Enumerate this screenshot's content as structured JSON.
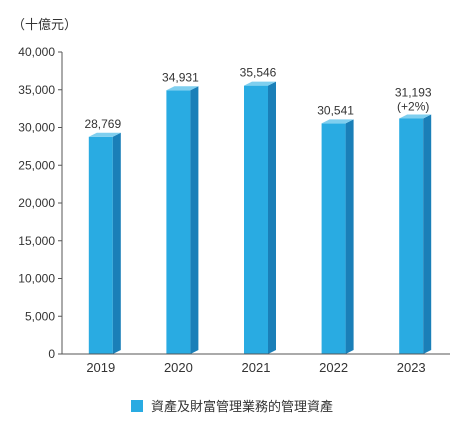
{
  "chart_data": {
    "type": "bar",
    "unit_label": "（十億元）",
    "categories": [
      "2019",
      "2020",
      "2021",
      "2022",
      "2023"
    ],
    "series": [
      {
        "name": "資產及財富管理業務的管理資產",
        "values": [
          28769,
          34931,
          35546,
          30541,
          31193
        ],
        "value_labels": [
          "28,769",
          "34,931",
          "35,546",
          "30,541",
          "31,193"
        ],
        "notes": [
          "",
          "",
          "",
          "",
          "(+2%)"
        ]
      }
    ],
    "y_ticks": [
      "0",
      "5,000",
      "10,000",
      "15,000",
      "20,000",
      "25,000",
      "30,000",
      "35,000",
      "40,000"
    ],
    "ylim": [
      0,
      40000
    ],
    "grid": false,
    "legend_position": "bottom",
    "colors": {
      "bar_front": "#29ABE2",
      "bar_side": "#1A7FB8",
      "bar_top": "#7FCFEF"
    }
  }
}
